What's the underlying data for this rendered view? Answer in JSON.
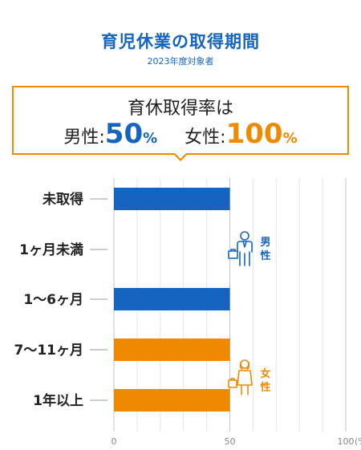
{
  "title": "育児休業の取得期間",
  "subtitle": "2023年度対象者",
  "callout": {
    "line1": "育休取得率は",
    "male_label": "男性:",
    "male_value": "50",
    "female_label": "女性:",
    "female_value": "100",
    "percent": "%"
  },
  "colors": {
    "male": "#1565c0",
    "female": "#ef8a00",
    "accent": "#ef8a00"
  },
  "chart_data": {
    "type": "bar",
    "orientation": "horizontal",
    "categories": [
      "未取得",
      "1ヶ月未満",
      "1〜6ヶ月",
      "7〜11ヶ月",
      "1年以上"
    ],
    "series": [
      {
        "name": "男性",
        "values": [
          50,
          0,
          50,
          0,
          0
        ],
        "color": "#1565c0"
      },
      {
        "name": "女性",
        "values": [
          0,
          0,
          0,
          50,
          50
        ],
        "color": "#ef8a00"
      }
    ],
    "xlim": [
      0,
      100
    ],
    "xticks": [
      {
        "value": 0,
        "label": "0"
      },
      {
        "value": 50,
        "label": "50"
      },
      {
        "value": 100,
        "label": "100"
      }
    ],
    "unit_label": "(%)",
    "legend": [
      {
        "name": "男性",
        "label": "男\n性",
        "icon": "businessman-icon",
        "color": "#1565c0"
      },
      {
        "name": "女性",
        "label": "女\n性",
        "icon": "businesswoman-icon",
        "color": "#ef8a00"
      }
    ],
    "grid": true
  }
}
